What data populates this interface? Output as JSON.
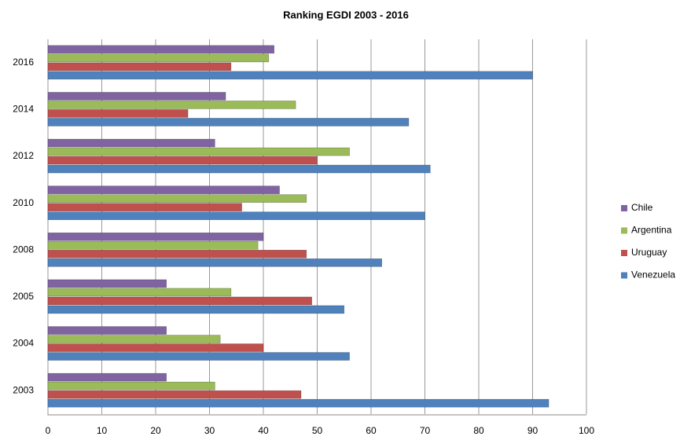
{
  "chart_data": {
    "type": "hbar",
    "title": "Ranking EGDI 2003 - 2016",
    "categories": [
      "2003",
      "2004",
      "2005",
      "2008",
      "2010",
      "2012",
      "2014",
      "2016"
    ],
    "series": [
      {
        "name": "Chile",
        "color": "#8064a2",
        "values": [
          22,
          22,
          22,
          40,
          43,
          31,
          33,
          42
        ]
      },
      {
        "name": "Argentina",
        "color": "#9bbb59",
        "values": [
          31,
          32,
          34,
          39,
          48,
          56,
          46,
          41
        ]
      },
      {
        "name": "Uruguay",
        "color": "#c0504d",
        "values": [
          47,
          40,
          49,
          48,
          36,
          50,
          26,
          34
        ]
      },
      {
        "name": "Venezuela",
        "color": "#4f81bd",
        "values": [
          93,
          56,
          55,
          62,
          70,
          71,
          67,
          90
        ]
      }
    ],
    "xlim": [
      0,
      100
    ],
    "xticks": [
      0,
      10,
      20,
      30,
      40,
      50,
      60,
      70,
      80,
      90,
      100
    ],
    "grid": true,
    "legend": "right"
  }
}
